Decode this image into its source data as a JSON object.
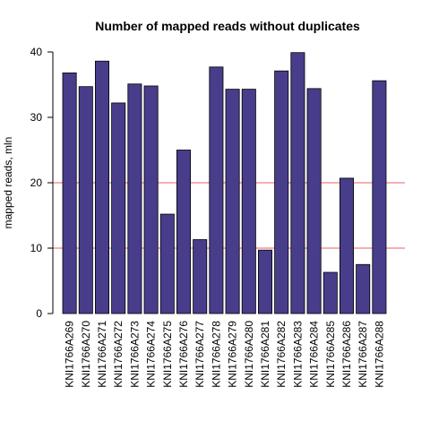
{
  "colors": {
    "bar_fill": "#483D8B",
    "bar_stroke": "#000000",
    "ref_line": "#F08080",
    "axis": "#000000",
    "background": "#FFFFFF"
  },
  "chart_data": {
    "type": "bar",
    "title": "Number of mapped reads without duplicates",
    "xlabel": "",
    "ylabel": "mapped reads, mln",
    "ylim": [
      0,
      40
    ],
    "yticks": [
      0,
      10,
      20,
      30,
      40
    ],
    "grid": false,
    "reference_lines": [
      10,
      20
    ],
    "categories": [
      "KNI1766A269",
      "KNI1766A270",
      "KNI1766A271",
      "KNI1766A272",
      "KNI1766A273",
      "KNI1766A274",
      "KNI1766A275",
      "KNI1766A276",
      "KNI1766A277",
      "KNI1766A278",
      "KNI1766A279",
      "KNI1766A280",
      "KNI1766A281",
      "KNI1766A282",
      "KNI1766A283",
      "KNI1766A284",
      "KNI1766A285",
      "KNI1766A286",
      "KNI1766A287",
      "KNI1766A288"
    ],
    "values": [
      36.8,
      34.7,
      38.6,
      32.2,
      35.1,
      34.8,
      15.2,
      25.0,
      11.3,
      37.7,
      34.3,
      34.3,
      9.7,
      37.1,
      39.9,
      34.4,
      6.3,
      20.7,
      7.5,
      35.6
    ]
  }
}
